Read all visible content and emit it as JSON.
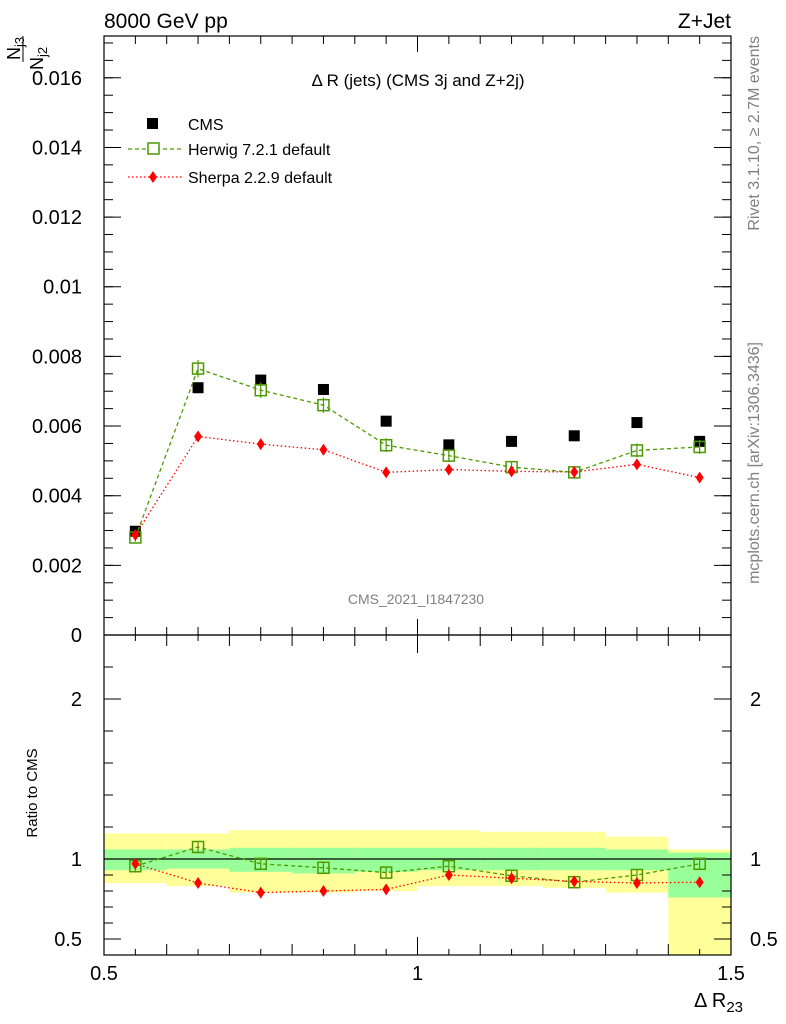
{
  "header": {
    "left_label": "8000 GeV pp",
    "right_label": "Z+Jet"
  },
  "side_labels": {
    "rivet": "Rivet 3.1.10, ≥ 2.7M events",
    "mcplots": "mcplots.cern.ch [arXiv:1306.3436]"
  },
  "chart_data": [
    {
      "type": "scatter",
      "panel": "main",
      "title": "Δ R (jets) (CMS 3j and Z+2j)",
      "watermark": "CMS_2021_I1847230",
      "ylabel": "N_j3 / N_j2",
      "ylim": [
        0,
        0.0172
      ],
      "yticks": [
        0,
        0.002,
        0.004,
        0.006,
        0.008,
        0.01,
        0.012,
        0.014,
        0.016
      ],
      "ytick_labels": [
        "0",
        "0.002",
        "0.004",
        "0.006",
        "0.008",
        "0.01",
        "0.012",
        "0.014",
        "0.016"
      ],
      "legend_position": "top-left",
      "x": [
        0.55,
        0.65,
        0.75,
        0.85,
        0.95,
        1.05,
        1.15,
        1.25,
        1.35,
        1.45
      ],
      "series": [
        {
          "name": "CMS",
          "color": "#000000",
          "marker": "square-filled",
          "values": [
            0.00298,
            0.0071,
            0.00732,
            0.00705,
            0.00614,
            0.00546,
            0.00556,
            0.00572,
            0.0061,
            0.00556
          ]
        },
        {
          "name": "Herwig 7.2.1 default",
          "color": "#4c9a00",
          "marker": "square-open",
          "line": "dashed",
          "values": [
            0.0028,
            0.00765,
            0.00703,
            0.0066,
            0.00545,
            0.00515,
            0.00482,
            0.00467,
            0.0053,
            0.0054
          ],
          "errors": [
            0.00012,
            0.00025,
            0.00022,
            0.00022,
            0.0002,
            0.00018,
            0.00016,
            0.00018,
            0.0002,
            0.0002
          ]
        },
        {
          "name": "Sherpa 2.2.9 default",
          "color": "#ff0000",
          "marker": "diamond-filled",
          "line": "dotted",
          "values": [
            0.00287,
            0.0057,
            0.00548,
            0.00532,
            0.00467,
            0.00475,
            0.0047,
            0.00468,
            0.0049,
            0.00452
          ],
          "errors": [
            0.0001,
            0.00015,
            0.00015,
            0.00015,
            0.00013,
            0.00013,
            0.00013,
            0.00013,
            0.00014,
            0.00013
          ]
        }
      ]
    },
    {
      "type": "scatter",
      "panel": "ratio",
      "ylabel": "Ratio to CMS",
      "xlabel": "Δ R23",
      "xlim": [
        0.5,
        1.5
      ],
      "xticks": [
        0.5,
        1,
        1.5
      ],
      "xtick_labels": [
        "0.5",
        "1",
        "1.5"
      ],
      "ylim": [
        0.4,
        2.4
      ],
      "yticks": [
        0.5,
        1,
        2
      ],
      "ytick_labels": [
        "0.5",
        "1",
        "2"
      ],
      "bins": [
        [
          0.5,
          0.6
        ],
        [
          0.6,
          0.7
        ],
        [
          0.7,
          0.8
        ],
        [
          0.8,
          0.9
        ],
        [
          0.9,
          1.0
        ],
        [
          1.0,
          1.1
        ],
        [
          1.1,
          1.2
        ],
        [
          1.2,
          1.3
        ],
        [
          1.3,
          1.4
        ],
        [
          1.4,
          1.5
        ]
      ],
      "band_stat": {
        "color": "#99ff99",
        "low": [
          0.93,
          0.94,
          0.92,
          0.91,
          0.92,
          0.93,
          0.93,
          0.93,
          0.93,
          0.76
        ],
        "high": [
          1.06,
          1.06,
          1.07,
          1.07,
          1.07,
          1.07,
          1.07,
          1.07,
          1.06,
          1.04
        ]
      },
      "band_total": {
        "color": "#ffff99",
        "low": [
          0.85,
          0.83,
          0.79,
          0.79,
          0.8,
          0.83,
          0.83,
          0.82,
          0.79,
          0.4
        ],
        "high": [
          1.16,
          1.16,
          1.18,
          1.18,
          1.18,
          1.18,
          1.17,
          1.17,
          1.14,
          1.06
        ]
      },
      "x": [
        0.55,
        0.65,
        0.75,
        0.85,
        0.95,
        1.05,
        1.15,
        1.25,
        1.35,
        1.45
      ],
      "series": [
        {
          "name": "Herwig 7.2.1 default",
          "color": "#4c9a00",
          "marker": "square-open",
          "line": "dashed",
          "values": [
            0.955,
            1.075,
            0.97,
            0.945,
            0.915,
            0.955,
            0.895,
            0.855,
            0.9,
            0.97
          ],
          "errors": [
            0.04,
            0.03,
            0.03,
            0.03,
            0.03,
            0.03,
            0.03,
            0.03,
            0.03,
            0.03
          ]
        },
        {
          "name": "Sherpa 2.2.9 default",
          "color": "#ff0000",
          "marker": "diamond-filled",
          "line": "dotted",
          "values": [
            0.97,
            0.85,
            0.79,
            0.8,
            0.81,
            0.9,
            0.88,
            0.86,
            0.85,
            0.855
          ],
          "errors": [
            0.03,
            0.02,
            0.02,
            0.02,
            0.02,
            0.02,
            0.02,
            0.02,
            0.02,
            0.02
          ]
        }
      ]
    }
  ]
}
